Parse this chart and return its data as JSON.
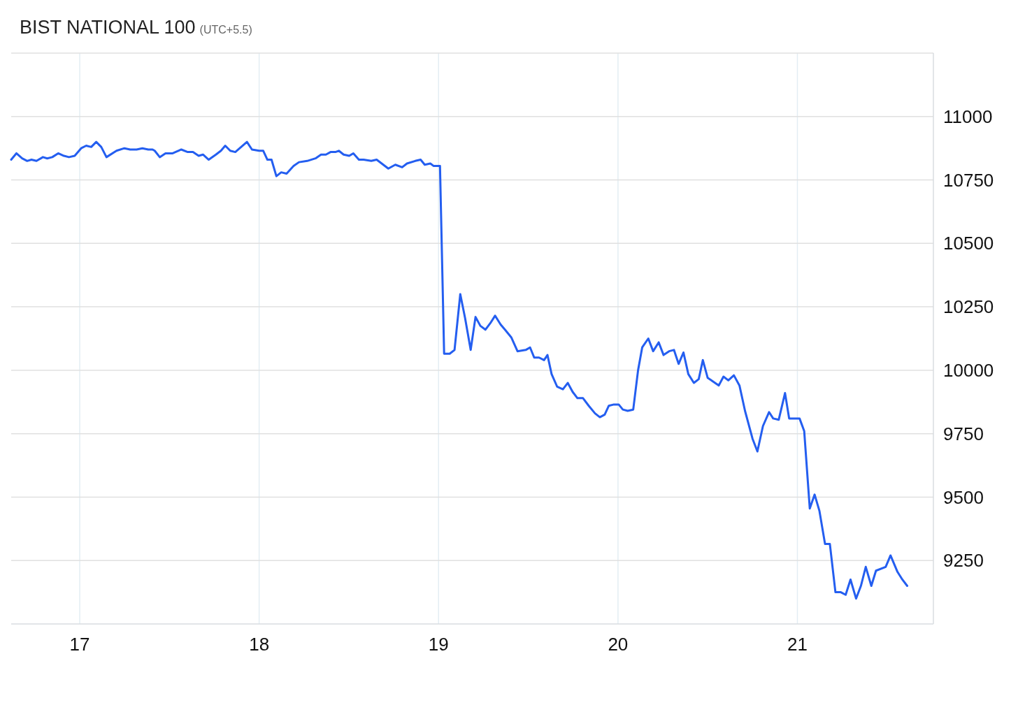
{
  "chart_data": {
    "type": "line",
    "title": "BIST NATIONAL 100",
    "subtitle": "(UTC+5.5)",
    "xlim": [
      16.618,
      21.758
    ],
    "xticks": [
      17,
      18,
      19,
      20,
      21
    ],
    "ylim": [
      9000,
      11250
    ],
    "yticks": [
      9250,
      9500,
      9750,
      10000,
      10250,
      10500,
      10750,
      11000
    ],
    "grid": true,
    "marker": "none",
    "line_style": "solid",
    "series": [
      {
        "color": "#245ef0",
        "x": [
          16.618,
          16.647,
          16.679,
          16.707,
          16.731,
          16.759,
          16.795,
          16.819,
          16.847,
          16.88,
          16.912,
          16.94,
          16.972,
          17.008,
          17.036,
          17.064,
          17.092,
          17.12,
          17.149,
          17.205,
          17.249,
          17.281,
          17.317,
          17.349,
          17.382,
          17.406,
          17.418,
          17.446,
          17.478,
          17.518,
          17.566,
          17.602,
          17.631,
          17.663,
          17.687,
          17.719,
          17.759,
          17.787,
          17.811,
          17.839,
          17.867,
          17.932,
          17.96,
          18.0,
          18.023,
          18.046,
          18.069,
          18.096,
          18.123,
          18.153,
          18.192,
          18.222,
          18.268,
          18.314,
          18.345,
          18.372,
          18.398,
          18.425,
          18.444,
          18.471,
          18.502,
          18.525,
          18.556,
          18.582,
          18.625,
          18.655,
          18.72,
          18.759,
          18.797,
          18.824,
          18.87,
          18.9,
          18.923,
          18.954,
          18.973,
          19.008,
          19.031,
          19.062,
          19.089,
          19.121,
          19.148,
          19.179,
          19.206,
          19.233,
          19.261,
          19.288,
          19.315,
          19.346,
          19.37,
          19.405,
          19.44,
          19.486,
          19.51,
          19.533,
          19.56,
          19.588,
          19.607,
          19.63,
          19.661,
          19.693,
          19.72,
          19.747,
          19.774,
          19.805,
          19.837,
          19.872,
          19.899,
          19.926,
          19.949,
          19.977,
          20.004,
          20.027,
          20.054,
          20.085,
          20.112,
          20.135,
          20.169,
          20.196,
          20.227,
          20.254,
          20.285,
          20.312,
          20.338,
          20.365,
          20.392,
          20.423,
          20.45,
          20.473,
          20.5,
          20.531,
          20.562,
          20.588,
          20.615,
          20.646,
          20.677,
          20.708,
          20.75,
          20.777,
          20.808,
          20.842,
          20.865,
          20.896,
          20.931,
          20.954,
          20.988,
          21.012,
          21.038,
          21.069,
          21.096,
          21.123,
          21.154,
          21.181,
          21.212,
          21.242,
          21.269,
          21.296,
          21.327,
          21.354,
          21.381,
          21.412,
          21.438,
          21.492,
          21.519,
          21.558,
          21.585,
          21.612
        ],
        "values": [
          10830,
          10855,
          10835,
          10825,
          10830,
          10825,
          10840,
          10835,
          10840,
          10855,
          10845,
          10840,
          10845,
          10875,
          10885,
          10880,
          10900,
          10880,
          10840,
          10865,
          10875,
          10870,
          10870,
          10875,
          10870,
          10870,
          10865,
          10840,
          10855,
          10855,
          10870,
          10860,
          10860,
          10845,
          10850,
          10830,
          10850,
          10865,
          10885,
          10865,
          10860,
          10900,
          10870,
          10865,
          10865,
          10830,
          10830,
          10765,
          10780,
          10775,
          10805,
          10820,
          10825,
          10835,
          10850,
          10850,
          10860,
          10860,
          10865,
          10850,
          10845,
          10855,
          10830,
          10830,
          10825,
          10830,
          10795,
          10810,
          10800,
          10815,
          10825,
          10830,
          10810,
          10815,
          10805,
          10805,
          10065,
          10065,
          10080,
          10300,
          10205,
          10080,
          10210,
          10175,
          10160,
          10185,
          10215,
          10180,
          10160,
          10130,
          10075,
          10080,
          10090,
          10050,
          10050,
          10040,
          10060,
          9985,
          9935,
          9925,
          9950,
          9915,
          9890,
          9890,
          9860,
          9830,
          9815,
          9825,
          9860,
          9865,
          9865,
          9845,
          9840,
          9845,
          10000,
          10090,
          10125,
          10075,
          10110,
          10060,
          10075,
          10080,
          10025,
          10070,
          9985,
          9950,
          9965,
          10040,
          9970,
          9955,
          9940,
          9975,
          9960,
          9980,
          9940,
          9840,
          9730,
          9680,
          9780,
          9835,
          9810,
          9805,
          9910,
          9810,
          9810,
          9810,
          9760,
          9455,
          9510,
          9445,
          9315,
          9315,
          9125,
          9125,
          9115,
          9175,
          9100,
          9150,
          9225,
          9150,
          9210,
          9225,
          9270,
          9205,
          9175,
          9150
        ]
      }
    ]
  }
}
